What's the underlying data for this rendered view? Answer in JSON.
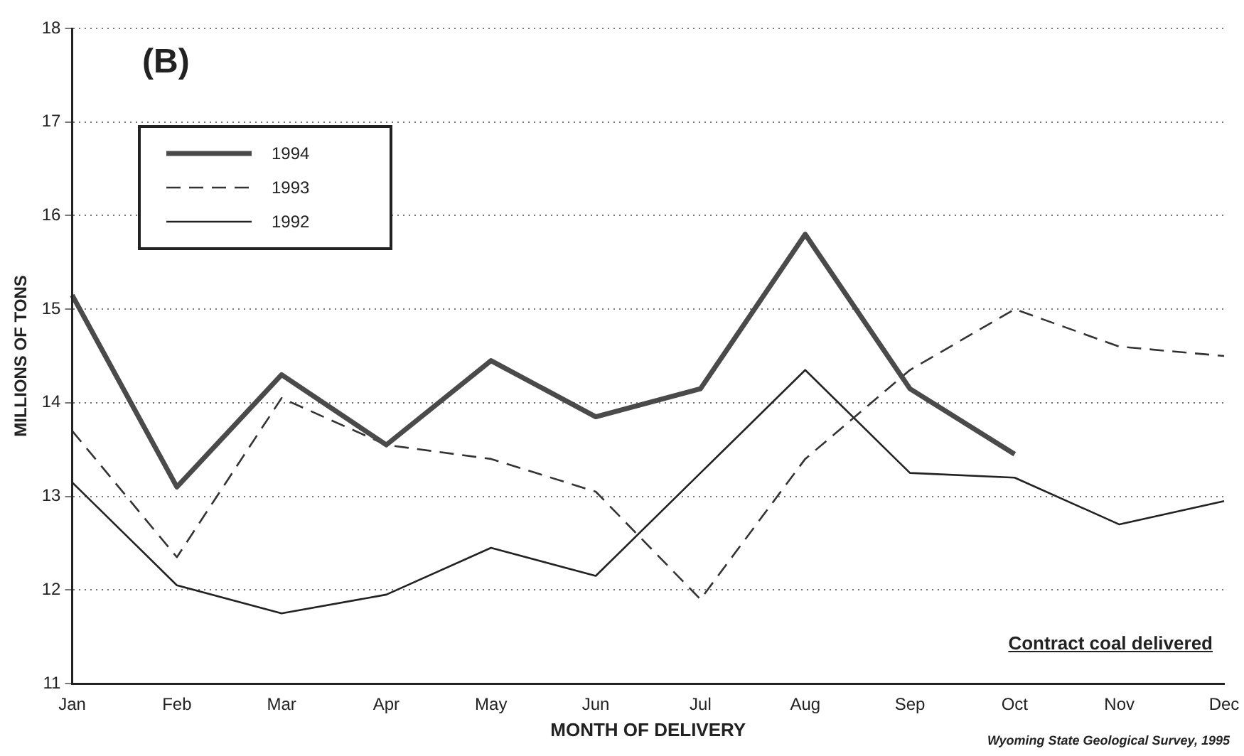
{
  "chart_data": {
    "type": "line",
    "title": "(B)",
    "xlabel": "MONTH OF DELIVERY",
    "ylabel": "MILLIONS OF TONS",
    "categories": [
      "Jan",
      "Feb",
      "Mar",
      "Apr",
      "May",
      "Jun",
      "Jul",
      "Aug",
      "Sep",
      "Oct",
      "Nov",
      "Dec"
    ],
    "series": [
      {
        "name": "1994",
        "color": "#4a4a4a",
        "line_style": "solid",
        "values": [
          15.15,
          13.1,
          14.3,
          13.55,
          14.45,
          13.85,
          14.15,
          15.8,
          14.15,
          13.45,
          null,
          null
        ]
      },
      {
        "name": "1993",
        "color": "#333333",
        "line_style": "dashed",
        "values": [
          13.7,
          12.35,
          14.05,
          13.55,
          13.4,
          13.05,
          11.9,
          13.4,
          14.35,
          15.0,
          14.6,
          14.5
        ]
      },
      {
        "name": "1992",
        "color": "#222222",
        "line_style": "solid",
        "values": [
          13.15,
          12.05,
          11.75,
          11.95,
          12.45,
          12.15,
          13.25,
          14.35,
          13.25,
          13.2,
          12.7,
          12.95
        ]
      }
    ],
    "ylim": [
      11,
      18
    ],
    "yticks": [
      11,
      12,
      13,
      14,
      15,
      16,
      17,
      18
    ],
    "grid": "y",
    "legend": "top left",
    "marker": "none",
    "annotations": [
      "Contract coal delivered",
      "Wyoming State Geological Survey, 1995"
    ]
  }
}
